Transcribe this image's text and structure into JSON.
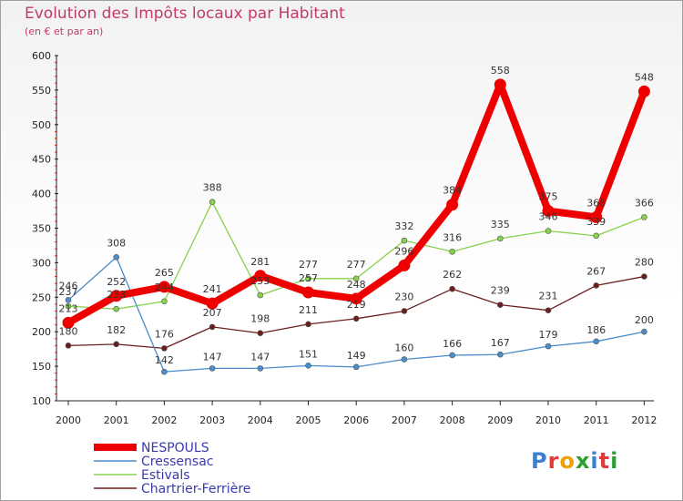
{
  "chart_data": {
    "type": "line",
    "title": "Evolution des Impôts locaux par Habitant",
    "subtitle": "(en € et par an)",
    "x": [
      "2000",
      "2001",
      "2002",
      "2003",
      "2004",
      "2005",
      "2006",
      "2007",
      "2008",
      "2009",
      "2010",
      "2011",
      "2012"
    ],
    "ylim": [
      100,
      600
    ],
    "yticks": [
      100,
      150,
      200,
      250,
      300,
      350,
      400,
      450,
      500,
      550,
      600
    ],
    "grid": false,
    "legend_position": "bottom-left",
    "series": [
      {
        "name": "NESPOULS",
        "color": "#ee0000",
        "values": [
          213,
          252,
          265,
          241,
          281,
          257,
          248,
          296,
          384,
          558,
          375,
          366,
          548
        ]
      },
      {
        "name": "Cressensac",
        "color": "#4a8ccd",
        "values": [
          246,
          308,
          142,
          147,
          147,
          151,
          149,
          160,
          166,
          167,
          179,
          186,
          200
        ]
      },
      {
        "name": "Estivals",
        "color": "#86d24a",
        "values": [
          237,
          233,
          244,
          388,
          253,
          277,
          277,
          332,
          316,
          335,
          346,
          339,
          366
        ]
      },
      {
        "name": "Chartrier-Ferrière",
        "color": "#6b1e1e",
        "values": [
          180,
          182,
          176,
          207,
          198,
          211,
          219,
          230,
          262,
          239,
          231,
          267,
          280
        ]
      }
    ]
  },
  "logo": {
    "letters": [
      "P",
      "r",
      "o",
      "x",
      "i",
      "t",
      "i"
    ],
    "colors": [
      "#3a7fd5",
      "#e03a3a",
      "#f0a000",
      "#2aa030",
      "#3a7fd5",
      "#e03a3a",
      "#2aa030"
    ]
  }
}
